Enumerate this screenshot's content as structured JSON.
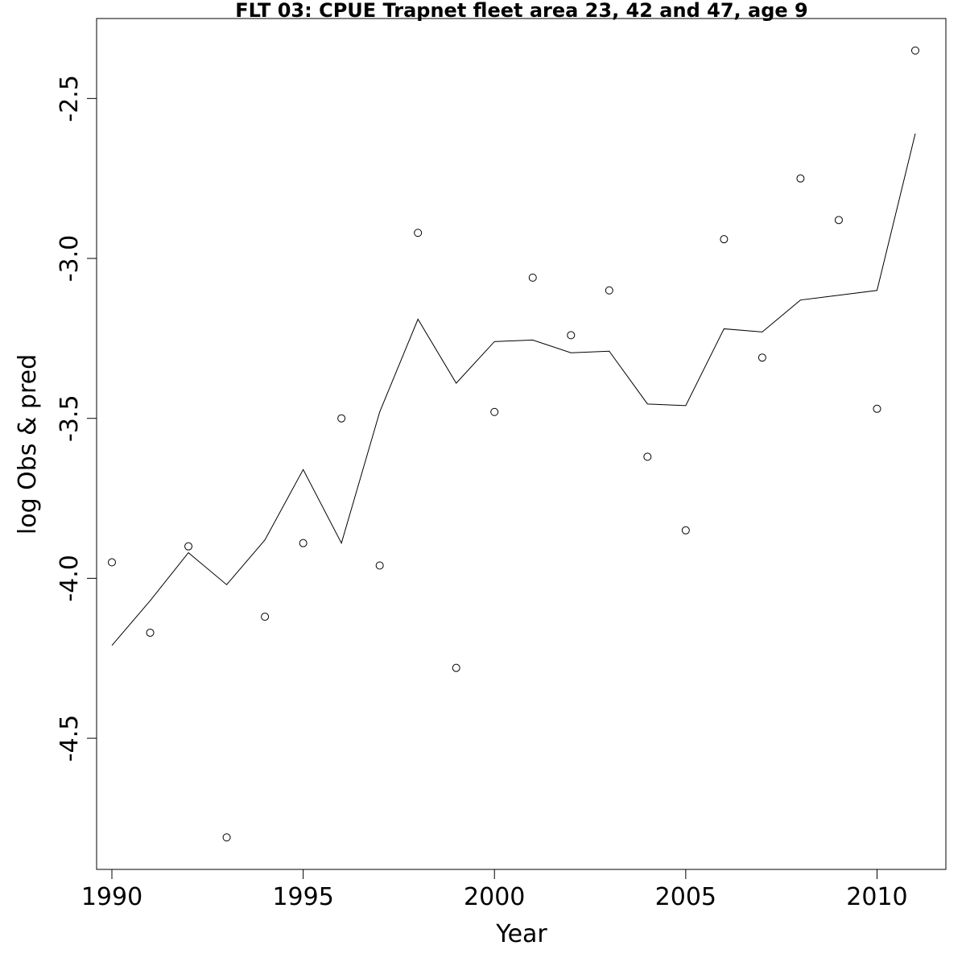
{
  "chart_data": {
    "type": "scatter",
    "title": "FLT 03: CPUE Trapnet fleet area 23, 42 and 47, age 9",
    "xlabel": "Year",
    "ylabel": "log Obs & pred",
    "xlim": [
      1989.6,
      2011.8
    ],
    "ylim": [
      -4.91,
      -2.25
    ],
    "x_ticks": [
      1990,
      1995,
      2000,
      2005,
      2010
    ],
    "x_tick_labels": [
      "1990",
      "1995",
      "2000",
      "2005",
      "2010"
    ],
    "y_ticks": [
      -4.5,
      -4.0,
      -3.5,
      -3.0,
      -2.5
    ],
    "y_tick_labels": [
      "-4.5",
      "-4.0",
      "-3.5",
      "-3.0",
      "-2.5"
    ],
    "grid": false,
    "series": [
      {
        "kind": "points",
        "marker": "open-circle",
        "x": [
          1990,
          1991,
          1992,
          1993,
          1994,
          1995,
          1996,
          1997,
          1998,
          1999,
          2000,
          2001,
          2002,
          2003,
          2004,
          2005,
          2006,
          2007,
          2008,
          2009,
          2010,
          2011
        ],
        "y": [
          -3.95,
          -4.17,
          -3.9,
          -4.81,
          -4.12,
          -3.89,
          -3.5,
          -3.96,
          -2.92,
          -4.28,
          -3.48,
          -3.06,
          -3.24,
          -3.1,
          -3.62,
          -3.85,
          -2.94,
          -3.31,
          -2.75,
          -2.88,
          -3.47,
          -2.35
        ]
      },
      {
        "kind": "line",
        "x": [
          1990,
          1991,
          1992,
          1993,
          1994,
          1995,
          1996,
          1997,
          1998,
          1999,
          2000,
          2001,
          2002,
          2003,
          2004,
          2005,
          2006,
          2007,
          2008,
          2009,
          2010,
          2011
        ],
        "y": [
          -4.21,
          -4.07,
          -3.92,
          -4.02,
          -3.88,
          -3.66,
          -3.89,
          -3.48,
          -3.19,
          -3.39,
          -3.26,
          -3.255,
          -3.295,
          -3.29,
          -3.455,
          -3.46,
          -3.22,
          -3.23,
          -3.13,
          -3.115,
          -3.1,
          -2.61
        ]
      }
    ]
  }
}
